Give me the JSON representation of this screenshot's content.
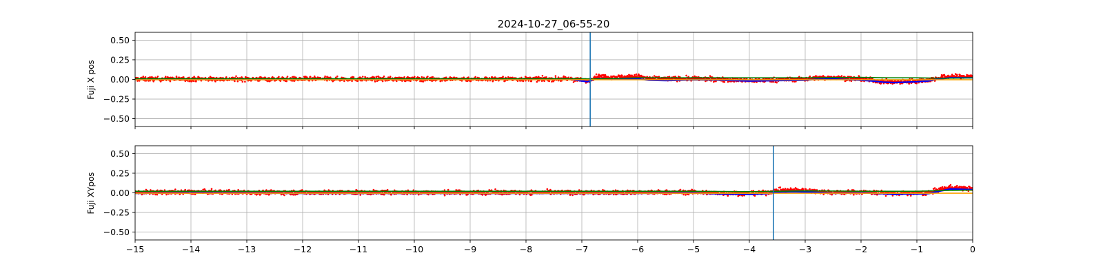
{
  "chart_data": [
    {
      "type": "scatter",
      "title": "2024-10-27_06-55-20",
      "xlabel": "",
      "ylabel": "Fuji X pos",
      "xlim": [
        -15,
        0
      ],
      "ylim": [
        -0.6,
        0.6
      ],
      "x_ticks": [
        -15,
        -14,
        -13,
        -12,
        -11,
        -10,
        -9,
        -8,
        -7,
        -6,
        -5,
        -4,
        -3,
        -2,
        -1,
        0
      ],
      "x_tick_labels_shown": false,
      "y_ticks": [
        0.5,
        0.25,
        0.0,
        -0.25,
        -0.5
      ],
      "y_tick_labels": [
        "0.50",
        "0.25",
        "0.00",
        "−0.25",
        "−0.50"
      ],
      "grid": true,
      "markers": [
        -6.85
      ],
      "series": [
        {
          "style": "scatter",
          "color": "#ff0000",
          "mean_profile": {
            "x": [
              -15,
              -7.2,
              -6.9,
              -6.8,
              -6.7,
              -6.5,
              -6.2,
              -6.0,
              -5.8,
              -5.5,
              -5.0,
              -4.5,
              -4.0,
              -3.5,
              -3.0,
              -2.8,
              -2.5,
              -2.2,
              -2.0,
              -1.8,
              -1.6,
              -1.4,
              -1.2,
              -1.0,
              -0.8,
              -0.6,
              -0.4,
              -0.2,
              0
            ],
            "y": [
              0.005,
              0.005,
              -0.02,
              0.02,
              0.04,
              0.03,
              0.03,
              0.04,
              0.01,
              0.01,
              0.01,
              0.0,
              -0.015,
              -0.005,
              0.005,
              0.02,
              0.025,
              0.01,
              0.005,
              -0.01,
              -0.03,
              -0.035,
              -0.03,
              -0.02,
              -0.01,
              0.02,
              0.04,
              0.035,
              0.04
            ]
          },
          "spread": 0.025,
          "count": 2400
        },
        {
          "style": "line",
          "color": "#0000ff",
          "x": [
            -15,
            -7.2,
            -6.9,
            -6.8,
            -6.7,
            -6.5,
            -6.2,
            -6.0,
            -5.8,
            -5.5,
            -5.0,
            -4.5,
            -4.0,
            -3.5,
            -3.0,
            -2.8,
            -2.5,
            -2.2,
            -2.0,
            -1.8,
            -1.6,
            -1.4,
            -1.2,
            -1.0,
            -0.8,
            -0.6,
            -0.4,
            -0.2,
            0
          ],
          "y": [
            0.0,
            0.0,
            -0.03,
            -0.005,
            0.01,
            0.005,
            0.005,
            0.005,
            -0.01,
            -0.015,
            -0.005,
            -0.01,
            -0.02,
            -0.015,
            -0.01,
            0.0,
            0.005,
            -0.005,
            -0.01,
            -0.02,
            -0.035,
            -0.04,
            -0.035,
            -0.03,
            -0.02,
            0.005,
            0.02,
            0.02,
            0.02
          ]
        },
        {
          "style": "line",
          "color": "#008000",
          "x": [
            -15,
            -7.0,
            -6.8,
            -6.0,
            -5.0,
            -4.0,
            -3.0,
            -2.0,
            -1.5,
            -1.0,
            -0.5,
            0
          ],
          "y": [
            0.01,
            0.01,
            0.005,
            0.02,
            0.02,
            0.02,
            0.02,
            0.025,
            0.02,
            0.02,
            0.015,
            0.02
          ]
        },
        {
          "style": "line",
          "color": "#ffa500",
          "x": [
            -15,
            0
          ],
          "y": [
            -0.005,
            -0.005
          ]
        }
      ]
    },
    {
      "type": "scatter",
      "title": "",
      "xlabel": "",
      "ylabel": "Fuji XYpos",
      "xlim": [
        -15,
        0
      ],
      "ylim": [
        -0.6,
        0.6
      ],
      "x_ticks": [
        -15,
        -14,
        -13,
        -12,
        -11,
        -10,
        -9,
        -8,
        -7,
        -6,
        -5,
        -4,
        -3,
        -2,
        -1,
        0
      ],
      "x_tick_labels": [
        "−15",
        "−14",
        "−13",
        "−12",
        "−11",
        "−10",
        "−9",
        "−8",
        "−7",
        "−6",
        "−5",
        "−4",
        "−3",
        "−2",
        "−1",
        "0"
      ],
      "y_ticks": [
        0.5,
        0.25,
        0.0,
        -0.25,
        -0.5
      ],
      "y_tick_labels": [
        "0.50",
        "0.25",
        "0.00",
        "−0.25",
        "−0.50"
      ],
      "grid": true,
      "markers": [
        -3.57
      ],
      "series": [
        {
          "style": "scatter",
          "color": "#ff0000",
          "mean_profile": {
            "x": [
              -15,
              -14,
              -12,
              -10,
              -8,
              -6,
              -5,
              -4.5,
              -4.0,
              -3.7,
              -3.5,
              -3.2,
              -3.0,
              -2.8,
              -2.5,
              -2.0,
              -1.6,
              -1.4,
              -1.2,
              -1.0,
              -0.8,
              -0.6,
              -0.4,
              -0.2,
              0
            ],
            "y": [
              0.005,
              0.01,
              0.005,
              0.005,
              0.005,
              0.005,
              0.01,
              -0.005,
              -0.01,
              0.0,
              0.03,
              0.035,
              0.03,
              0.02,
              0.005,
              0.01,
              0.0,
              -0.01,
              -0.005,
              -0.005,
              0.0,
              0.04,
              0.07,
              0.06,
              0.05
            ]
          },
          "spread": 0.025,
          "count": 2400
        },
        {
          "style": "line",
          "color": "#0000ff",
          "x": [
            -15,
            -14,
            -12,
            -10,
            -8,
            -6,
            -5,
            -4.5,
            -4.0,
            -3.7,
            -3.5,
            -3.2,
            -3.0,
            -2.8,
            -2.5,
            -2.0,
            -1.6,
            -1.4,
            -1.2,
            -1.0,
            -0.8,
            -0.6,
            -0.4,
            -0.2,
            0
          ],
          "y": [
            -0.005,
            0.0,
            -0.005,
            -0.005,
            -0.005,
            -0.005,
            0.0,
            -0.015,
            -0.02,
            -0.01,
            0.01,
            0.015,
            0.01,
            0.005,
            -0.005,
            0.0,
            -0.01,
            -0.02,
            -0.015,
            -0.015,
            -0.01,
            0.02,
            0.05,
            0.045,
            0.04
          ]
        },
        {
          "style": "line",
          "color": "#008000",
          "x": [
            -15,
            -10,
            -5,
            -4.0,
            -3.5,
            -3.0,
            -2.0,
            -1.0,
            -0.5,
            0
          ],
          "y": [
            0.02,
            0.02,
            0.02,
            0.015,
            0.02,
            0.025,
            0.02,
            0.02,
            0.03,
            0.035
          ]
        },
        {
          "style": "line",
          "color": "#ffa500",
          "x": [
            -15,
            0
          ],
          "y": [
            -0.005,
            -0.005
          ]
        }
      ]
    }
  ]
}
